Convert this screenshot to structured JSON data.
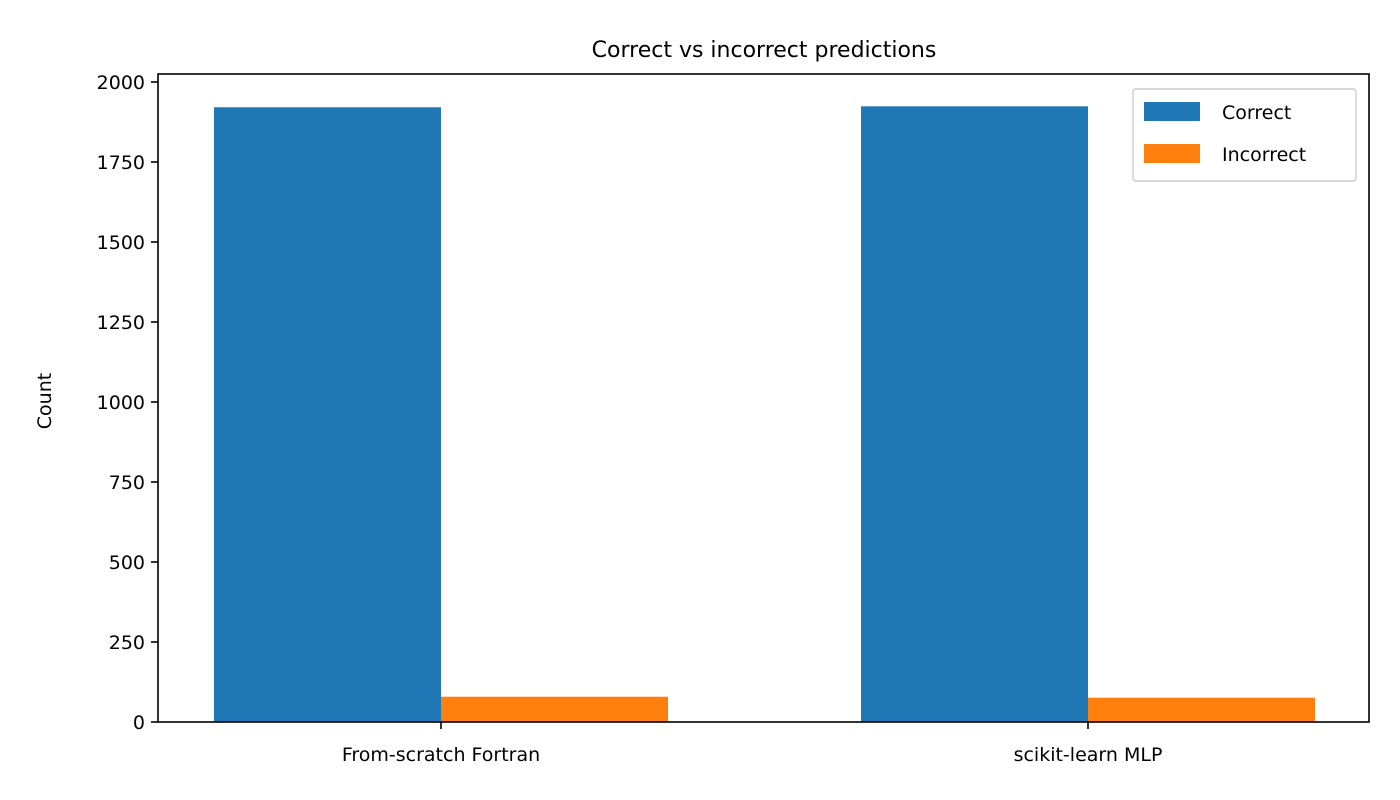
{
  "chart_data": {
    "type": "bar",
    "title": "Correct vs incorrect predictions",
    "xlabel": "",
    "ylabel": "Count",
    "categories": [
      "From-scratch Fortran",
      "scikit-learn MLP"
    ],
    "series": [
      {
        "name": "Correct",
        "color": "#1f77b4",
        "values": [
          1921,
          1924
        ]
      },
      {
        "name": "Incorrect",
        "color": "#ff7f0e",
        "values": [
          79,
          76
        ]
      }
    ],
    "ylim": [
      0,
      2025
    ],
    "yticks": [
      0,
      250,
      500,
      750,
      1000,
      1250,
      1500,
      1750,
      2000
    ],
    "grid": false,
    "legend_position": "top-right"
  }
}
